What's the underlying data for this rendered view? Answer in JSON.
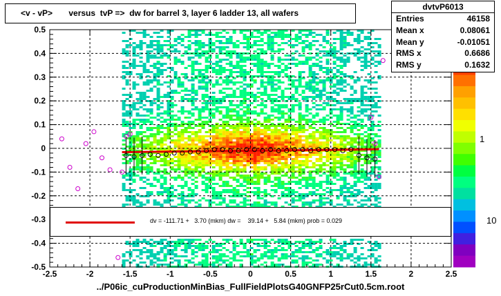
{
  "title": "<v - vP>       versus  tvP =>  dw for barrel 3, layer 6 ladder 13, all wafers",
  "stats": {
    "name": "dvtvP6013",
    "rows": [
      {
        "k": "Entries",
        "v": "46158"
      },
      {
        "k": "Mean x",
        "v": "0.08061"
      },
      {
        "k": "Mean y",
        "v": "-0.01051"
      },
      {
        "k": "RMS x",
        "v": "0.6686"
      },
      {
        "k": "RMS y",
        "v": "0.1632"
      }
    ]
  },
  "fit_text": "dv = -111.71 +   3.70 (mkm) dw =    39.14 +   5.84 (mkm) prob = 0.029",
  "footer": "../P06ic_cuProductionMinBias_FullFieldPlotsG40GNFP25rCut0.5cm.root",
  "colors": {
    "fit_line": "#e00000",
    "profile_open": "#000000",
    "profile_magenta": "#cc00cc",
    "grid": "#000000"
  },
  "chart_data": {
    "type": "heatmap",
    "xlim": [
      -2.5,
      2.5
    ],
    "ylim": [
      -0.5,
      0.5
    ],
    "xticks": [
      "-2.5",
      "-2",
      "-1.5",
      "-1",
      "-0.5",
      "0",
      "0.5",
      "1",
      "1.5",
      "2",
      "2.5"
    ],
    "yticks": [
      "0.5",
      "0.4",
      "0.3",
      "0.2",
      "0.1",
      "0",
      "-0.1",
      "-0.2",
      "-0.3",
      "-0.4",
      "-0.5"
    ],
    "z_scale": "log",
    "z_tick_labels": [
      "1",
      "10"
    ],
    "grid": true,
    "density_x_range": [
      -1.6,
      1.6
    ],
    "fit_line": {
      "x": [
        -1.6,
        1.6
      ],
      "y": [
        -0.016,
        -0.004
      ]
    },
    "profile_points": {
      "x": [
        -1.55,
        -1.45,
        -1.35,
        -1.25,
        -1.15,
        -1.05,
        -0.95,
        -0.85,
        -0.75,
        -0.65,
        -0.55,
        -0.45,
        -0.35,
        -0.25,
        -0.15,
        -0.05,
        0.05,
        0.15,
        0.25,
        0.35,
        0.45,
        0.55,
        0.65,
        0.75,
        0.85,
        0.95,
        1.05,
        1.15,
        1.25,
        1.35,
        1.45,
        1.55
      ],
      "y": [
        -0.03,
        -0.035,
        -0.03,
        -0.025,
        -0.03,
        -0.025,
        -0.02,
        -0.02,
        -0.015,
        -0.015,
        -0.01,
        -0.005,
        -0.005,
        -0.01,
        -0.01,
        -0.005,
        -0.005,
        -0.01,
        -0.005,
        -0.01,
        -0.01,
        -0.005,
        -0.005,
        -0.01,
        -0.005,
        -0.005,
        -0.005,
        -0.01,
        -0.005,
        -0.03,
        -0.04,
        -0.045
      ]
    },
    "outer_points_magenta": {
      "x": [
        -2.35,
        -2.25,
        -2.15,
        -2.05,
        -1.95,
        -1.85,
        -1.75,
        -1.65,
        -1.6,
        -1.55,
        -1.5,
        1.5,
        1.55,
        1.6,
        1.65
      ],
      "y": [
        0.04,
        -0.08,
        -0.17,
        0.02,
        0.07,
        -0.04,
        -0.09,
        -0.46,
        -0.1,
        0.05,
        0.06,
        0.13,
        0.02,
        -0.12,
        0.37
      ]
    }
  }
}
